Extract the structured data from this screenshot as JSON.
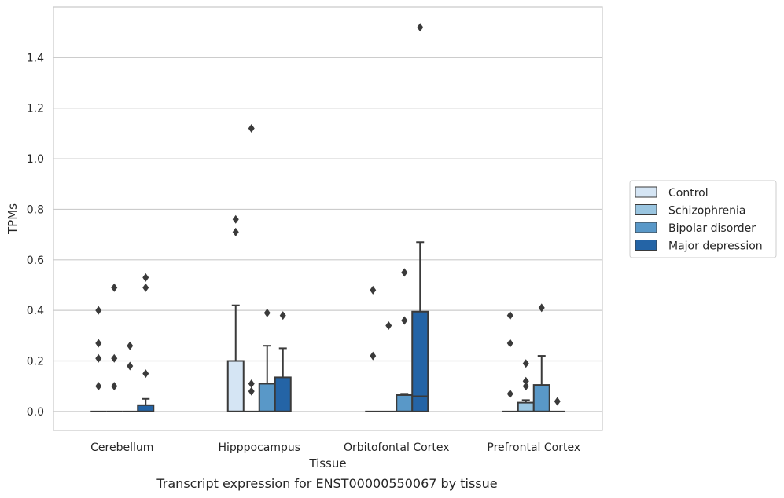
{
  "caption": "Transcript expression for ENST00000550067 by tissue",
  "chart_data": {
    "type": "boxplot",
    "xlabel": "Tissue",
    "ylabel": "TPMs",
    "ylim": [
      -0.075,
      1.6
    ],
    "yticks": [
      0.0,
      0.2,
      0.4,
      0.6,
      0.8,
      1.0,
      1.2,
      1.4
    ],
    "grid": "horizontal",
    "legend_placement": "right",
    "categories": [
      "Cerebellum",
      "Hipppocampus",
      "Orbitofontal Cortex",
      "Prefrontal Cortex"
    ],
    "series": [
      {
        "name": "Control",
        "color": "#d5e5f4",
        "boxes": [
          {
            "q1": 0,
            "median": 0,
            "q3": 0,
            "whisker_low": 0,
            "whisker_high": 0,
            "outliers": [
              0.4,
              0.27,
              0.21,
              0.1
            ]
          },
          {
            "q1": 0,
            "median": 0,
            "q3": 0.2,
            "whisker_low": 0,
            "whisker_high": 0.42,
            "outliers": [
              0.76,
              0.71
            ]
          },
          {
            "q1": 0,
            "median": 0,
            "q3": 0,
            "whisker_low": 0,
            "whisker_high": 0,
            "outliers": [
              0.48,
              0.22
            ]
          },
          {
            "q1": 0,
            "median": 0,
            "q3": 0,
            "whisker_low": 0,
            "whisker_high": 0,
            "outliers": [
              0.38,
              0.27,
              0.07
            ]
          }
        ]
      },
      {
        "name": "Schizophrenia",
        "color": "#9ac5e0",
        "boxes": [
          {
            "q1": 0,
            "median": 0,
            "q3": 0,
            "whisker_low": 0,
            "whisker_high": 0,
            "outliers": [
              0.49,
              0.21,
              0.1
            ]
          },
          {
            "q1": 0,
            "median": 0,
            "q3": 0,
            "whisker_low": 0,
            "whisker_high": 0,
            "outliers": [
              1.12,
              0.11,
              0.08
            ]
          },
          {
            "q1": 0,
            "median": 0,
            "q3": 0,
            "whisker_low": 0,
            "whisker_high": 0,
            "outliers": [
              0.34
            ]
          },
          {
            "q1": 0,
            "median": 0,
            "q3": 0.035,
            "whisker_low": 0,
            "whisker_high": 0.045,
            "outliers": [
              0.19,
              0.12,
              0.1
            ]
          }
        ]
      },
      {
        "name": "Bipolar disorder",
        "color": "#5998c8",
        "boxes": [
          {
            "q1": 0,
            "median": 0,
            "q3": 0,
            "whisker_low": 0,
            "whisker_high": 0,
            "outliers": [
              0.26,
              0.18
            ]
          },
          {
            "q1": 0,
            "median": 0,
            "q3": 0.11,
            "whisker_low": 0,
            "whisker_high": 0.26,
            "outliers": [
              0.39
            ]
          },
          {
            "q1": 0,
            "median": 0,
            "q3": 0.065,
            "whisker_low": 0,
            "whisker_high": 0.07,
            "outliers": [
              0.55,
              0.36
            ]
          },
          {
            "q1": 0,
            "median": 0,
            "q3": 0.105,
            "whisker_low": 0,
            "whisker_high": 0.22,
            "outliers": [
              0.41
            ]
          }
        ]
      },
      {
        "name": "Major depression",
        "color": "#2464a6",
        "boxes": [
          {
            "q1": 0,
            "median": 0,
            "q3": 0.025,
            "whisker_low": 0,
            "whisker_high": 0.05,
            "outliers": [
              0.53,
              0.49,
              0.15
            ]
          },
          {
            "q1": 0,
            "median": 0,
            "q3": 0.135,
            "whisker_low": 0,
            "whisker_high": 0.25,
            "outliers": [
              0.38
            ]
          },
          {
            "q1": 0,
            "median": 0.06,
            "q3": 0.395,
            "whisker_low": 0,
            "whisker_high": 0.67,
            "outliers": [
              1.52
            ]
          },
          {
            "q1": 0,
            "median": 0,
            "q3": 0,
            "whisker_low": 0,
            "whisker_high": 0,
            "outliers": [
              0.04
            ]
          }
        ]
      }
    ]
  }
}
